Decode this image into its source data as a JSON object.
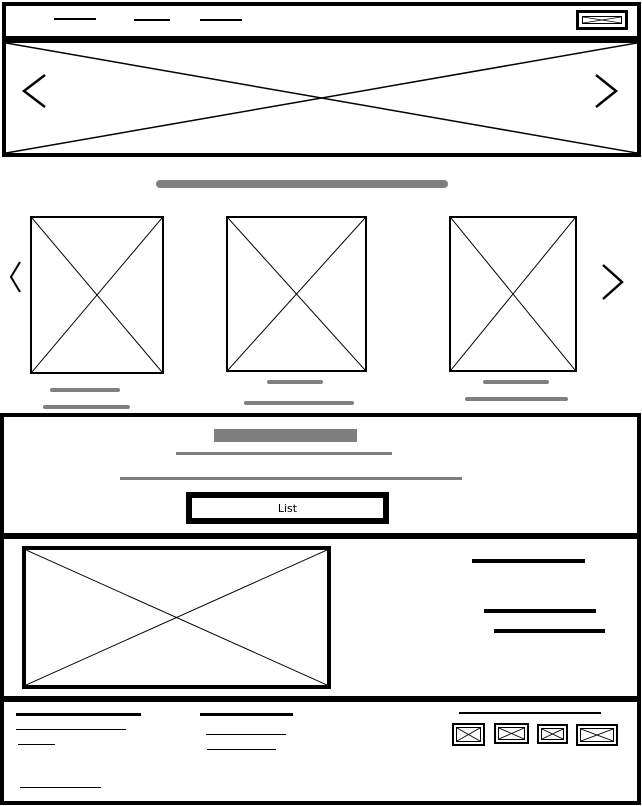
{
  "list_button": {
    "label": "List"
  }
}
